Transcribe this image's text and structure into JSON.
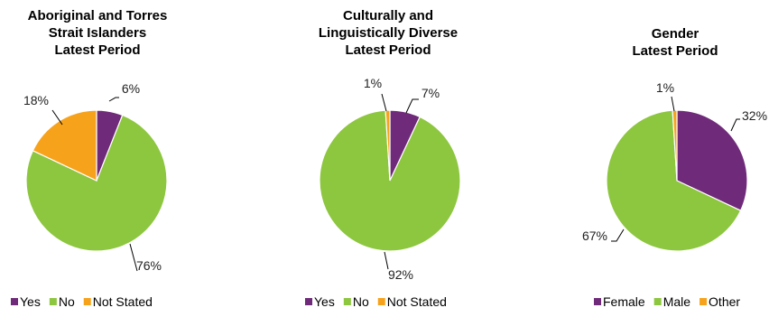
{
  "chart_data": [
    {
      "type": "pie",
      "title_lines": [
        "Aboriginal and Torres",
        "Strait Islanders",
        "Latest Period"
      ],
      "slices": [
        {
          "label": "Yes",
          "value": 6,
          "display": "6%",
          "color": "#6f2a7a"
        },
        {
          "label": "No",
          "value": 76,
          "display": "76%",
          "color": "#8dc63f"
        },
        {
          "label": "Not Stated",
          "value": 18,
          "display": "18%",
          "color": "#f7a21b"
        }
      ],
      "legend": [
        "Yes",
        "No",
        "Not Stated"
      ],
      "legend_position": "bottom"
    },
    {
      "type": "pie",
      "title_lines": [
        "Culturally and",
        "Linguistically Diverse",
        "Latest Period"
      ],
      "slices": [
        {
          "label": "Yes",
          "value": 7,
          "display": "7%",
          "color": "#6f2a7a"
        },
        {
          "label": "No",
          "value": 92,
          "display": "92%",
          "color": "#8dc63f"
        },
        {
          "label": "Not Stated",
          "value": 1,
          "display": "1%",
          "color": "#f7a21b"
        }
      ],
      "legend": [
        "Yes",
        "No",
        "Not Stated"
      ],
      "legend_position": "bottom"
    },
    {
      "type": "pie",
      "title_lines": [
        "Gender",
        "Latest Period"
      ],
      "slices": [
        {
          "label": "Female",
          "value": 32,
          "display": "32%",
          "color": "#6f2a7a"
        },
        {
          "label": "Male",
          "value": 67,
          "display": "67%",
          "color": "#8dc63f"
        },
        {
          "label": "Other",
          "value": 1,
          "display": "1%",
          "color": "#f7a21b"
        }
      ],
      "legend": [
        "Female",
        "Male",
        "Other"
      ],
      "legend_position": "bottom"
    }
  ]
}
